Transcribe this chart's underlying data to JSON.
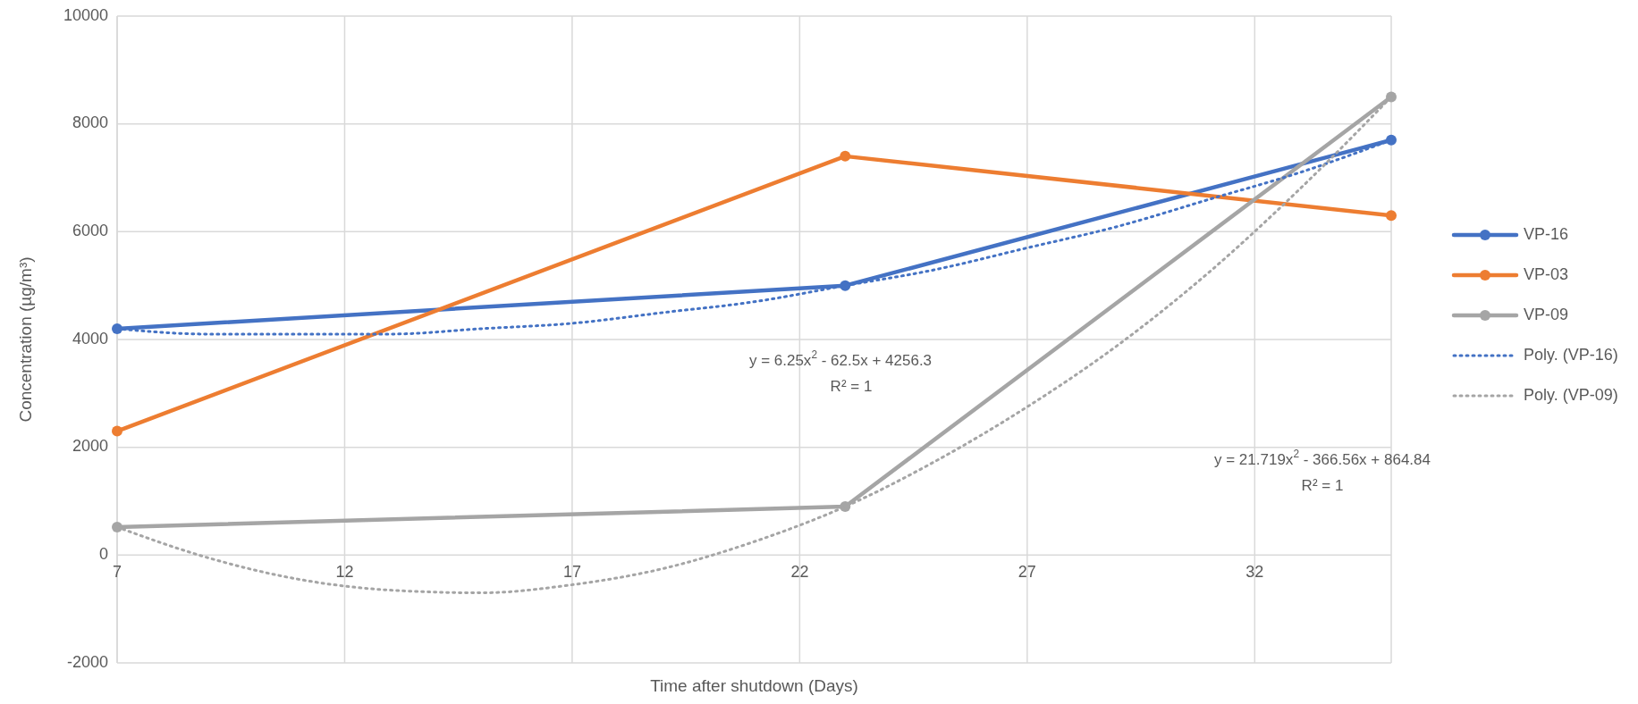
{
  "chart_data": {
    "type": "line",
    "xlabel": "Time after shutdown (Days)",
    "ylabel": "Concentration (µg/m³)",
    "x": [
      7,
      23,
      35
    ],
    "xlim": [
      7,
      35
    ],
    "xticks": [
      7,
      12,
      17,
      22,
      27,
      32
    ],
    "ylim": [
      -2000,
      10000
    ],
    "yticks": [
      -2000,
      0,
      2000,
      4000,
      6000,
      8000,
      10000
    ],
    "grid": true,
    "legend": "right",
    "marker": "circle",
    "line_style": "solid",
    "series": [
      {
        "name": "VP-16",
        "color": "#4472c4",
        "values": [
          4200,
          5000,
          7700
        ]
      },
      {
        "name": "VP-03",
        "color": "#ed7d31",
        "values": [
          2300,
          7400,
          6300
        ]
      },
      {
        "name": "VP-09",
        "color": "#a5a5a5",
        "values": [
          520,
          900,
          8500
        ]
      },
      {
        "name": "Poly. (VP-16)",
        "color": "#4472c4",
        "marker": "none",
        "line_style": "dotted",
        "x": [
          7,
          9,
          11,
          13,
          15,
          17,
          19,
          21,
          23,
          25,
          27,
          29,
          31,
          33,
          35
        ],
        "values": [
          4200,
          4100,
          4100,
          4100,
          4200,
          4300,
          4500,
          4700,
          5000,
          5300,
          5700,
          6100,
          6600,
          7100,
          7700
        ]
      },
      {
        "name": "Poly. (VP-09)",
        "color": "#a5a5a5",
        "marker": "none",
        "line_style": "dotted",
        "x": [
          7,
          9,
          11,
          13,
          15,
          17,
          19,
          21,
          23,
          25,
          27,
          29,
          31,
          33,
          35
        ],
        "values": [
          520,
          -50,
          -450,
          -650,
          -700,
          -550,
          -250,
          250,
          900,
          1750,
          2750,
          3900,
          5250,
          6800,
          8500
        ]
      }
    ],
    "annotations": [
      "y = 6.25x$^{2}$ - 62.5x + 4256.3",
      "R² = 1",
      "y = 21.719x$^{2}$ - 366.56x + 864.84",
      "R² = 1"
    ]
  }
}
